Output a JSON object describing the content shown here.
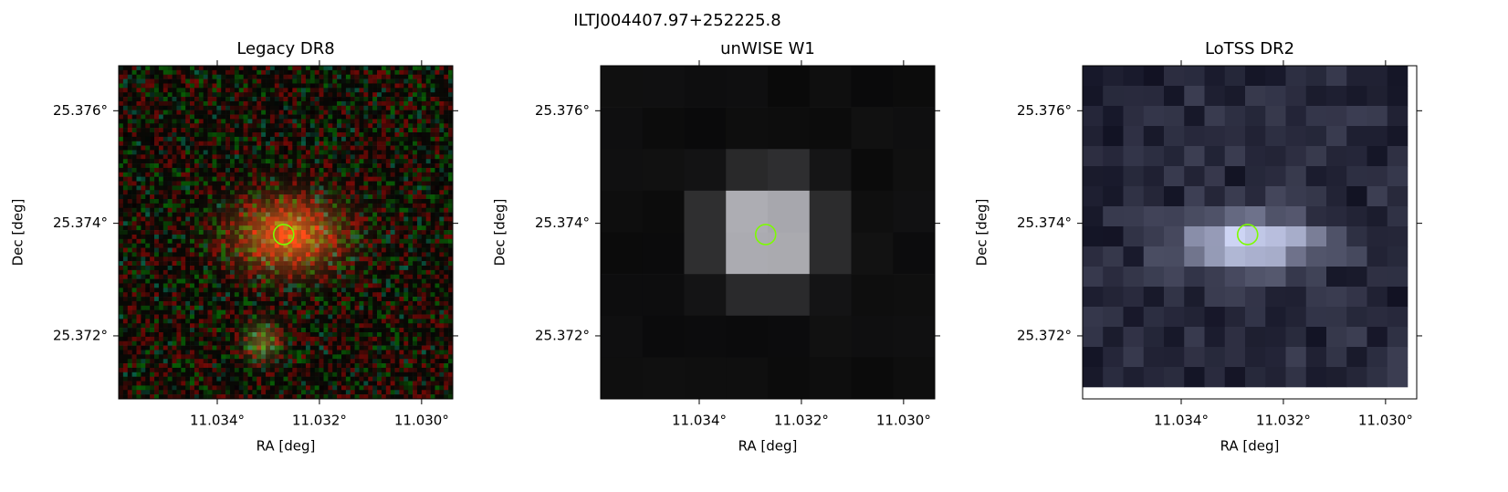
{
  "title": "ILTJ004407.97+252225.8",
  "chart_data": [
    {
      "type": "image",
      "style": "rgb",
      "title": "Legacy DR8",
      "xlabel": "RA [deg]",
      "ylabel": "Dec [deg]",
      "xlim": [
        11.03593,
        11.02939
      ],
      "ylim": [
        25.37088,
        25.3768
      ],
      "xticks": [
        {
          "value": 11.034,
          "label": "11.034°"
        },
        {
          "value": 11.032,
          "label": "11.032°"
        },
        {
          "value": 11.03,
          "label": "11.030°"
        }
      ],
      "yticks": [
        {
          "value": 25.372,
          "label": "25.372°"
        },
        {
          "value": 25.374,
          "label": "25.374°"
        },
        {
          "value": 25.376,
          "label": "25.376°"
        }
      ],
      "marker": {
        "x": 11.0327,
        "y": 25.3738,
        "color": "#7cfc00"
      }
    },
    {
      "type": "image",
      "style": "gray",
      "title": "unWISE W1",
      "xlabel": "RA [deg]",
      "ylabel": "Dec [deg]",
      "xlim": [
        11.03593,
        11.02939
      ],
      "ylim": [
        25.37088,
        25.3768
      ],
      "xticks": [
        {
          "value": 11.034,
          "label": "11.034°"
        },
        {
          "value": 11.032,
          "label": "11.032°"
        },
        {
          "value": 11.03,
          "label": "11.030°"
        }
      ],
      "yticks": [
        {
          "value": 25.372,
          "label": "25.372°"
        },
        {
          "value": 25.374,
          "label": "25.374°"
        },
        {
          "value": 25.376,
          "label": "25.376°"
        }
      ],
      "marker": {
        "x": 11.0327,
        "y": 25.3738,
        "color": "#7cfc00"
      }
    },
    {
      "type": "image",
      "style": "bone",
      "title": "LoTSS DR2",
      "xlabel": "RA [deg]",
      "ylabel": "Dec [deg]",
      "xlim": [
        11.03593,
        11.02939
      ],
      "ylim": [
        25.37088,
        25.3768
      ],
      "xticks": [
        {
          "value": 11.034,
          "label": "11.034°"
        },
        {
          "value": 11.032,
          "label": "11.032°"
        },
        {
          "value": 11.03,
          "label": "11.030°"
        }
      ],
      "yticks": [
        {
          "value": 25.372,
          "label": "25.372°"
        },
        {
          "value": 25.374,
          "label": "25.374°"
        },
        {
          "value": 25.376,
          "label": "25.376°"
        }
      ],
      "marker": {
        "x": 11.0327,
        "y": 25.3738,
        "color": "#7cfc00"
      }
    }
  ]
}
